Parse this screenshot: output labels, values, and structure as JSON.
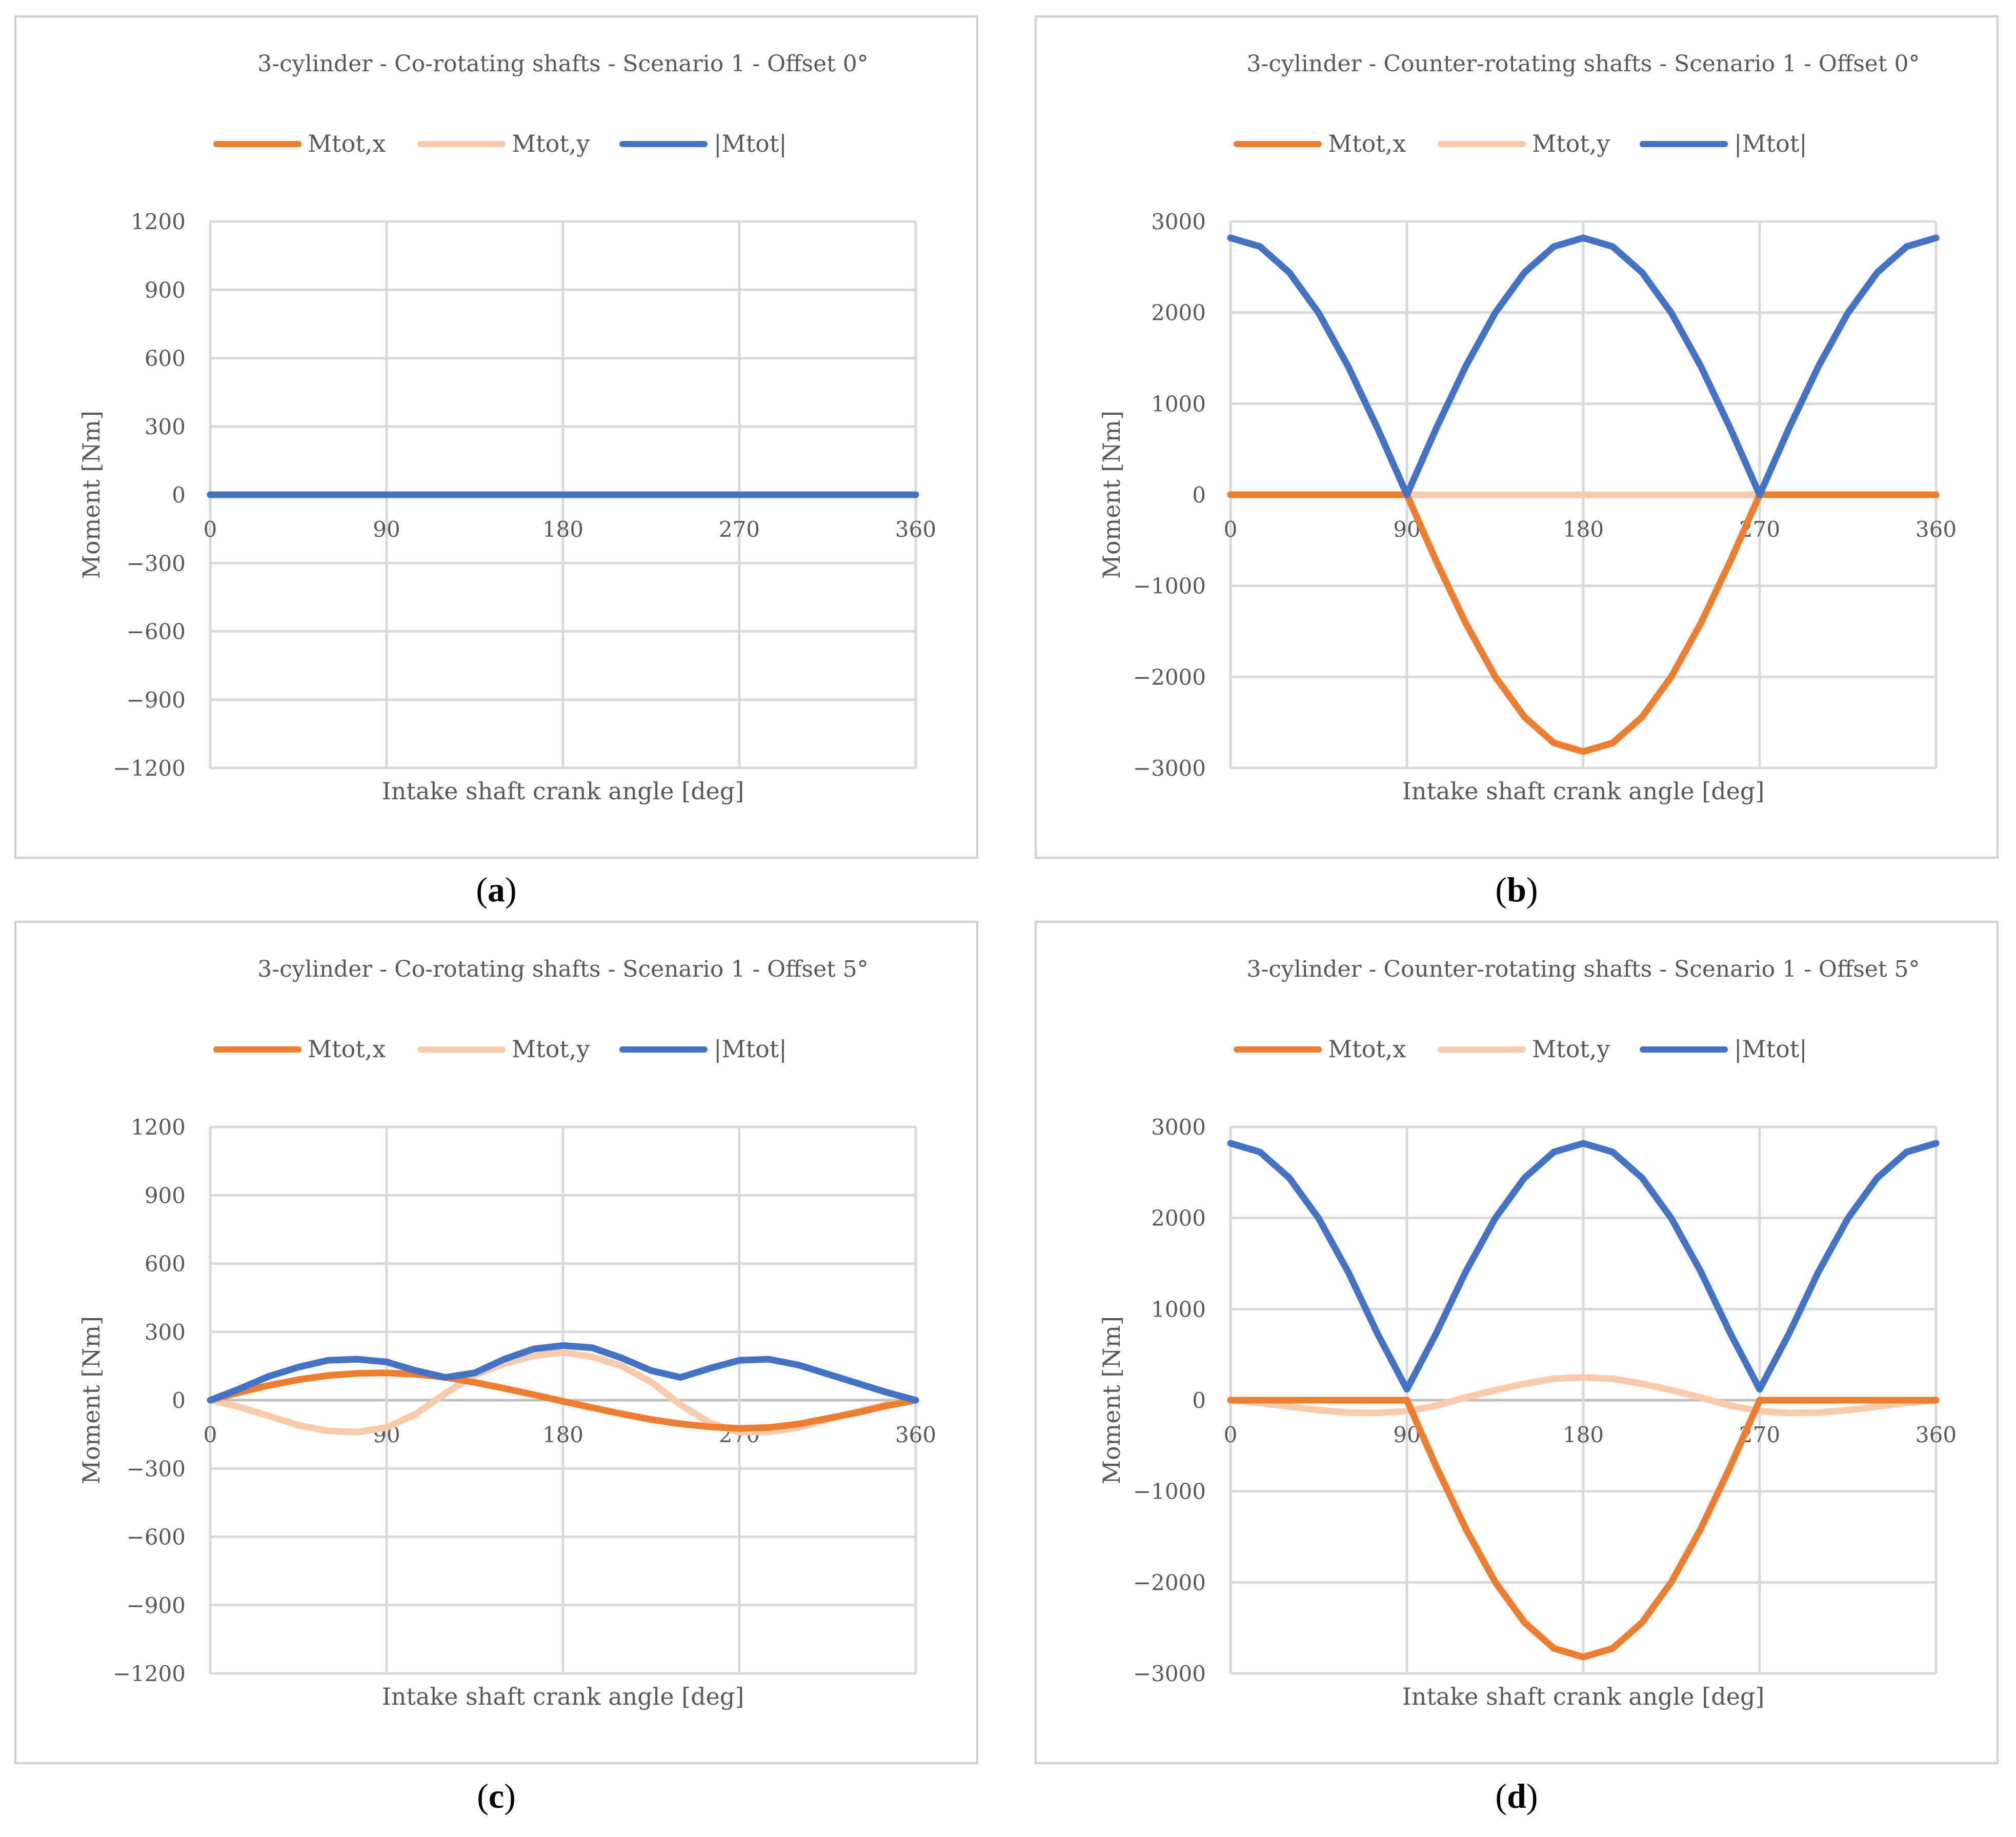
{
  "figure": {
    "captions": [
      "a",
      "b",
      "c",
      "d"
    ]
  },
  "colors": {
    "mtot_x": "#ED7D31",
    "mtot_y": "#F8CBAD",
    "mtot_abs": "#4472C4",
    "grid": "#D9D9D9",
    "text": "#595959"
  },
  "chart_data": [
    {
      "type": "line",
      "title": "3-cylinder - Co-rotating shafts - Scenario 1 - Offset 0°",
      "xlabel": "Intake shaft crank angle [deg]",
      "ylabel": "Moment [Nm]",
      "xlim": [
        0,
        360
      ],
      "ylim": [
        -1200,
        1200
      ],
      "xticks": [
        0,
        90,
        180,
        270,
        360
      ],
      "yticks": [
        1200,
        900,
        600,
        300,
        0,
        -300,
        -600,
        -900,
        -1200
      ],
      "ytick_labels": [
        "1200",
        "900",
        "600",
        "300",
        "0",
        "−300",
        "−600",
        "−900",
        "−1200"
      ],
      "legend": [
        "Mtot,x",
        "Mtot,y",
        "|Mtot|"
      ],
      "legend_position": "top",
      "grid": true,
      "series": [
        {
          "name": "Mtot,x",
          "x": [
            0,
            360
          ],
          "y": [
            0,
            0
          ]
        },
        {
          "name": "Mtot,y",
          "x": [
            0,
            360
          ],
          "y": [
            0,
            0
          ]
        },
        {
          "name": "|Mtot|",
          "x": [
            0,
            360
          ],
          "y": [
            0,
            0
          ]
        }
      ]
    },
    {
      "type": "line",
      "title": "3-cylinder - Counter-rotating shafts - Scenario 1 - Offset 0°",
      "xlabel": "Intake shaft crank angle [deg]",
      "ylabel": "Moment [Nm]",
      "xlim": [
        0,
        360
      ],
      "ylim": [
        -3000,
        3000
      ],
      "xticks": [
        0,
        90,
        180,
        270,
        360
      ],
      "yticks": [
        3000,
        2000,
        1000,
        0,
        -1000,
        -2000,
        -3000
      ],
      "ytick_labels": [
        "3000",
        "2000",
        "1000",
        "0",
        "−1000",
        "−2000",
        "−3000"
      ],
      "legend": [
        "Mtot,x",
        "Mtot,y",
        "|Mtot|"
      ],
      "legend_position": "top",
      "grid": true,
      "series": [
        {
          "name": "Mtot,x",
          "x": [
            0,
            15,
            30,
            45,
            60,
            75,
            90,
            105,
            120,
            135,
            150,
            165,
            180,
            195,
            210,
            225,
            240,
            255,
            270,
            285,
            300,
            315,
            330,
            345,
            360
          ],
          "y": [
            0,
            0,
            0,
            0,
            0,
            0,
            0,
            -730,
            -1410,
            -1995,
            -2440,
            -2725,
            -2820,
            -2725,
            -2440,
            -1995,
            -1410,
            -730,
            0,
            0,
            0,
            0,
            0,
            0,
            0
          ]
        },
        {
          "name": "Mtot,y",
          "x": [
            0,
            360
          ],
          "y": [
            0,
            0
          ]
        },
        {
          "name": "|Mtot|",
          "x": [
            0,
            15,
            30,
            45,
            60,
            75,
            90,
            105,
            120,
            135,
            150,
            165,
            180,
            195,
            210,
            225,
            240,
            255,
            270,
            285,
            300,
            315,
            330,
            345,
            360
          ],
          "y": [
            2820,
            2725,
            2440,
            1995,
            1410,
            730,
            0,
            730,
            1410,
            1995,
            2440,
            2725,
            2820,
            2725,
            2440,
            1995,
            1410,
            730,
            0,
            730,
            1410,
            1995,
            2440,
            2725,
            2820
          ]
        }
      ]
    },
    {
      "type": "line",
      "title": "3-cylinder - Co-rotating shafts - Scenario 1 - Offset 5°",
      "xlabel": "Intake shaft crank angle [deg]",
      "ylabel": "Moment [Nm]",
      "xlim": [
        0,
        360
      ],
      "ylim": [
        -1200,
        1200
      ],
      "xticks": [
        0,
        90,
        180,
        270,
        360
      ],
      "yticks": [
        1200,
        900,
        600,
        300,
        0,
        -300,
        -600,
        -900,
        -1200
      ],
      "ytick_labels": [
        "1200",
        "900",
        "600",
        "300",
        "0",
        "−300",
        "−600",
        "−900",
        "−1200"
      ],
      "legend": [
        "Mtot,x",
        "Mtot,y",
        "|Mtot|"
      ],
      "legend_position": "top",
      "grid": true,
      "series": [
        {
          "name": "Mtot,x",
          "x": [
            0,
            15,
            30,
            45,
            60,
            75,
            90,
            105,
            120,
            135,
            150,
            165,
            180,
            195,
            210,
            225,
            240,
            255,
            270,
            285,
            300,
            315,
            330,
            345,
            360
          ],
          "y": [
            0,
            35,
            65,
            90,
            108,
            118,
            120,
            114,
            100,
            78,
            52,
            24,
            -5,
            -33,
            -60,
            -85,
            -104,
            -117,
            -124,
            -120,
            -105,
            -80,
            -55,
            -25,
            0
          ]
        },
        {
          "name": "Mtot,y",
          "x": [
            0,
            15,
            30,
            45,
            60,
            75,
            90,
            105,
            120,
            135,
            150,
            165,
            180,
            195,
            210,
            225,
            240,
            255,
            270,
            285,
            300,
            315,
            330,
            345,
            360
          ],
          "y": [
            0,
            -30,
            -70,
            -110,
            -135,
            -140,
            -120,
            -60,
            30,
            110,
            160,
            195,
            210,
            190,
            150,
            80,
            -20,
            -100,
            -140,
            -140,
            -120,
            -85,
            -50,
            -20,
            0
          ]
        },
        {
          "name": "|Mtot|",
          "x": [
            0,
            15,
            30,
            45,
            60,
            75,
            90,
            105,
            120,
            135,
            150,
            165,
            180,
            195,
            210,
            225,
            240,
            255,
            270,
            285,
            300,
            315,
            330,
            345,
            360
          ],
          "y": [
            0,
            50,
            105,
            145,
            175,
            180,
            168,
            130,
            100,
            120,
            180,
            225,
            240,
            230,
            185,
            130,
            100,
            140,
            175,
            180,
            155,
            115,
            75,
            35,
            0
          ]
        }
      ]
    },
    {
      "type": "line",
      "title": "3-cylinder - Counter-rotating shafts - Scenario 1 - Offset 5°",
      "xlabel": "Intake shaft crank angle [deg]",
      "ylabel": "Moment [Nm]",
      "xlim": [
        0,
        360
      ],
      "ylim": [
        -3000,
        3000
      ],
      "xticks": [
        0,
        90,
        180,
        270,
        360
      ],
      "yticks": [
        3000,
        2000,
        1000,
        0,
        -1000,
        -2000,
        -3000
      ],
      "ytick_labels": [
        "3000",
        "2000",
        "1000",
        "0",
        "−1000",
        "−2000",
        "−3000"
      ],
      "legend": [
        "Mtot,x",
        "Mtot,y",
        "|Mtot|"
      ],
      "legend_position": "top",
      "grid": true,
      "series": [
        {
          "name": "Mtot,x",
          "x": [
            0,
            15,
            30,
            45,
            60,
            75,
            90,
            105,
            120,
            135,
            150,
            165,
            180,
            195,
            210,
            225,
            240,
            255,
            270,
            285,
            300,
            315,
            330,
            345,
            360
          ],
          "y": [
            0,
            0,
            0,
            0,
            0,
            0,
            0,
            -730,
            -1410,
            -1995,
            -2440,
            -2725,
            -2820,
            -2725,
            -2440,
            -1995,
            -1410,
            -730,
            0,
            0,
            0,
            0,
            0,
            0,
            0
          ]
        },
        {
          "name": "Mtot,y",
          "x": [
            0,
            15,
            30,
            45,
            60,
            75,
            90,
            105,
            120,
            135,
            150,
            165,
            180,
            195,
            210,
            225,
            240,
            255,
            270,
            285,
            300,
            315,
            330,
            345,
            360
          ],
          "y": [
            0,
            -30,
            -70,
            -110,
            -135,
            -140,
            -120,
            -60,
            30,
            110,
            180,
            235,
            250,
            235,
            180,
            110,
            30,
            -60,
            -120,
            -140,
            -135,
            -110,
            -70,
            -30,
            0
          ]
        },
        {
          "name": "|Mtot|",
          "x": [
            0,
            15,
            30,
            45,
            60,
            75,
            90,
            105,
            120,
            135,
            150,
            165,
            180,
            195,
            210,
            225,
            240,
            255,
            270,
            285,
            300,
            315,
            330,
            345,
            360
          ],
          "y": [
            2820,
            2725,
            2440,
            1995,
            1410,
            730,
            120,
            735,
            1410,
            1995,
            2440,
            2725,
            2820,
            2725,
            2440,
            1995,
            1410,
            735,
            120,
            730,
            1410,
            1995,
            2440,
            2725,
            2820
          ]
        }
      ]
    }
  ]
}
